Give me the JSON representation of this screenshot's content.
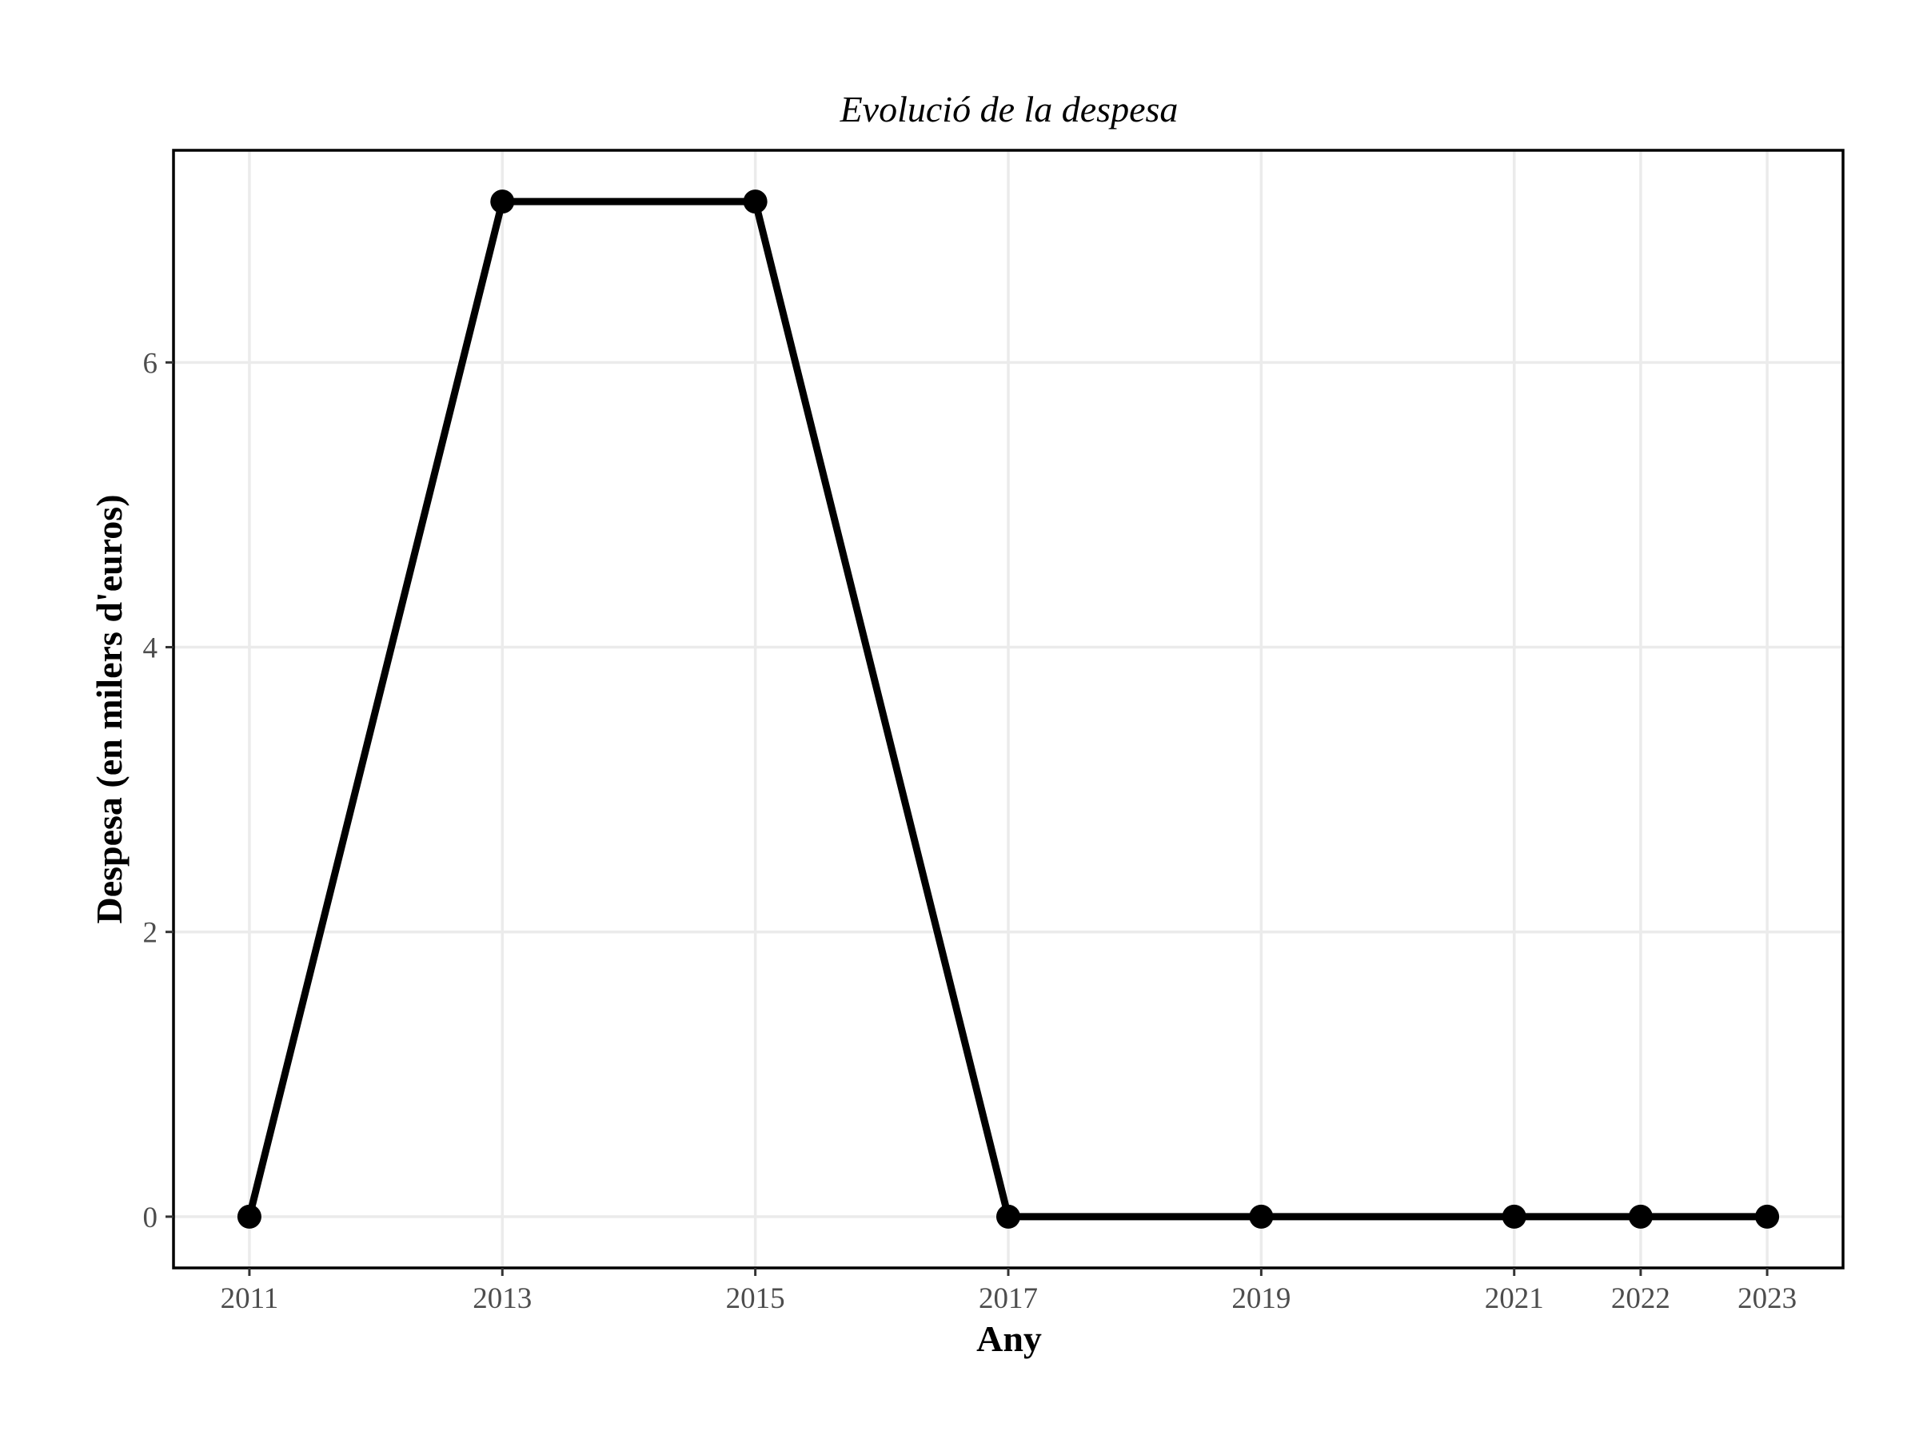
{
  "chart_data": {
    "type": "line",
    "title": "Evolució de la despesa",
    "xlabel": "Any",
    "ylabel": "Despesa (en milers d'euros)",
    "x": [
      2011,
      2013,
      2015,
      2017,
      2019,
      2021,
      2022,
      2023
    ],
    "series": [
      {
        "values": [
          0,
          7.13,
          7.13,
          0,
          0,
          0,
          0,
          0
        ]
      }
    ],
    "x_ticks": [
      2011,
      2013,
      2015,
      2017,
      2019,
      2021,
      2022,
      2023
    ],
    "y_ticks": [
      0,
      2,
      4,
      6
    ],
    "xlim": [
      2010.4,
      2023.6
    ],
    "ylim": [
      -0.36,
      7.49
    ],
    "grid": true,
    "legend": "none",
    "colors": {
      "line": "#000000",
      "grid": "#ebebeb",
      "ticks": "#4d4d4d"
    }
  }
}
